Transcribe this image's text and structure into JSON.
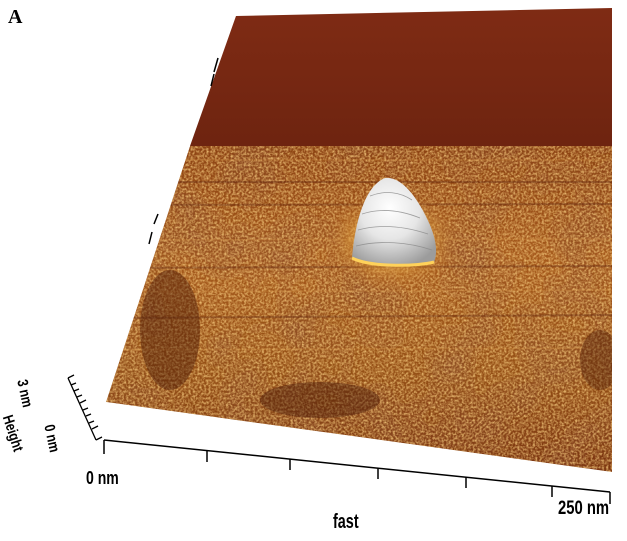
{
  "figure": {
    "panel_label": "A",
    "x_axis": {
      "start_label": "0 nm",
      "end_label": "250 nm",
      "title": "fast"
    },
    "z_axis": {
      "max_label": "3 nm",
      "min_label": "0 nm",
      "title": "Height"
    }
  },
  "colors": {
    "background": "#ffffff",
    "upper_plane": "#7a2a12",
    "surface_dark": "#6b2a0c",
    "surface_mid": "#9a4d16",
    "surface_light": "#c27a2a",
    "peak_highlight": "#f2f2f2",
    "axis": "#000000"
  }
}
